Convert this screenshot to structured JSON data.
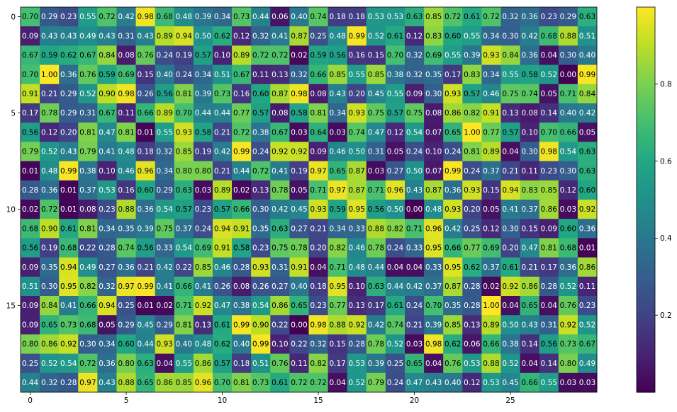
{
  "chart_data": {
    "type": "heatmap",
    "colormap": "viridis",
    "value_range": [
      0,
      1
    ],
    "xlim": [
      -0.5,
      29.5
    ],
    "ylim": [
      19.5,
      -0.5
    ],
    "x_ticks": [
      0,
      5,
      10,
      15,
      20,
      25
    ],
    "y_ticks": [
      0,
      5,
      10,
      15
    ],
    "colorbar_ticks": [
      0.2,
      0.4,
      0.6,
      0.8
    ],
    "grid": false,
    "show_cell_labels": true,
    "label_format": "2 decimals",
    "values": [
      [
        0.7,
        0.29,
        0.23,
        0.55,
        0.72,
        0.42,
        0.98,
        0.68,
        0.48,
        0.39,
        0.34,
        0.73,
        0.44,
        0.06,
        0.4,
        0.74,
        0.18,
        0.18,
        0.53,
        0.53,
        0.63,
        0.85,
        0.72,
        0.61,
        0.72,
        0.32,
        0.36,
        0.23,
        0.29,
        0.63
      ],
      [
        0.09,
        0.43,
        0.43,
        0.49,
        0.43,
        0.31,
        0.43,
        0.89,
        0.94,
        0.5,
        0.62,
        0.12,
        0.32,
        0.41,
        0.87,
        0.25,
        0.48,
        0.99,
        0.52,
        0.61,
        0.12,
        0.83,
        0.6,
        0.55,
        0.34,
        0.3,
        0.42,
        0.68,
        0.88,
        0.51
      ],
      [
        0.67,
        0.59,
        0.62,
        0.67,
        0.84,
        0.08,
        0.76,
        0.24,
        0.19,
        0.57,
        0.1,
        0.89,
        0.72,
        0.72,
        0.02,
        0.59,
        0.56,
        0.16,
        0.15,
        0.7,
        0.32,
        0.69,
        0.55,
        0.39,
        0.93,
        0.84,
        0.36,
        0.04,
        0.3,
        0.4
      ],
      [
        0.7,
        1.0,
        0.36,
        0.76,
        0.59,
        0.69,
        0.15,
        0.4,
        0.24,
        0.34,
        0.51,
        0.67,
        0.11,
        0.13,
        0.32,
        0.66,
        0.85,
        0.55,
        0.85,
        0.38,
        0.32,
        0.35,
        0.17,
        0.83,
        0.34,
        0.55,
        0.58,
        0.52,
        0.0,
        0.99
      ],
      [
        0.91,
        0.21,
        0.29,
        0.52,
        0.9,
        0.98,
        0.26,
        0.56,
        0.81,
        0.39,
        0.73,
        0.16,
        0.6,
        0.87,
        0.98,
        0.08,
        0.43,
        0.2,
        0.45,
        0.55,
        0.09,
        0.3,
        0.93,
        0.57,
        0.46,
        0.75,
        0.74,
        0.05,
        0.71,
        0.84
      ],
      [
        0.17,
        0.78,
        0.29,
        0.31,
        0.67,
        0.11,
        0.66,
        0.89,
        0.7,
        0.44,
        0.44,
        0.77,
        0.57,
        0.08,
        0.58,
        0.81,
        0.34,
        0.93,
        0.75,
        0.57,
        0.75,
        0.08,
        0.86,
        0.82,
        0.91,
        0.13,
        0.08,
        0.14,
        0.4,
        0.42
      ],
      [
        0.56,
        0.12,
        0.2,
        0.81,
        0.47,
        0.81,
        0.01,
        0.55,
        0.93,
        0.58,
        0.21,
        0.72,
        0.38,
        0.67,
        0.03,
        0.64,
        0.03,
        0.74,
        0.47,
        0.12,
        0.54,
        0.07,
        0.65,
        1.0,
        0.77,
        0.57,
        0.1,
        0.7,
        0.66,
        0.05
      ],
      [
        0.79,
        0.52,
        0.43,
        0.79,
        0.41,
        0.48,
        0.18,
        0.32,
        0.85,
        0.19,
        0.42,
        0.99,
        0.24,
        0.92,
        0.92,
        0.09,
        0.46,
        0.5,
        0.31,
        0.05,
        0.24,
        0.1,
        0.24,
        0.81,
        0.89,
        0.04,
        0.3,
        0.98,
        0.54,
        0.63
      ],
      [
        0.01,
        0.48,
        0.99,
        0.38,
        0.1,
        0.46,
        0.96,
        0.34,
        0.8,
        0.8,
        0.21,
        0.44,
        0.72,
        0.41,
        0.19,
        0.97,
        0.65,
        0.87,
        0.03,
        0.27,
        0.5,
        0.07,
        0.99,
        0.24,
        0.37,
        0.21,
        0.11,
        0.23,
        0.3,
        0.63
      ],
      [
        0.28,
        0.36,
        0.01,
        0.37,
        0.53,
        0.16,
        0.6,
        0.29,
        0.63,
        0.03,
        0.89,
        0.02,
        0.13,
        0.78,
        0.05,
        0.71,
        0.97,
        0.87,
        0.71,
        0.96,
        0.43,
        0.87,
        0.36,
        0.93,
        0.15,
        0.94,
        0.83,
        0.85,
        0.12,
        0.6
      ],
      [
        0.02,
        0.72,
        0.01,
        0.08,
        0.23,
        0.88,
        0.36,
        0.54,
        0.57,
        0.23,
        0.57,
        0.66,
        0.3,
        0.42,
        0.45,
        0.93,
        0.59,
        0.95,
        0.56,
        0.5,
        0.0,
        0.48,
        0.93,
        0.2,
        0.05,
        0.41,
        0.37,
        0.86,
        0.03,
        0.92
      ],
      [
        0.68,
        0.9,
        0.61,
        0.81,
        0.34,
        0.35,
        0.39,
        0.75,
        0.37,
        0.24,
        0.94,
        0.91,
        0.35,
        0.63,
        0.27,
        0.21,
        0.34,
        0.33,
        0.88,
        0.82,
        0.71,
        0.96,
        0.42,
        0.25,
        0.12,
        0.3,
        0.15,
        0.09,
        0.6,
        0.36
      ],
      [
        0.56,
        0.19,
        0.68,
        0.22,
        0.28,
        0.74,
        0.56,
        0.33,
        0.54,
        0.69,
        0.91,
        0.58,
        0.23,
        0.75,
        0.78,
        0.2,
        0.82,
        0.46,
        0.78,
        0.24,
        0.33,
        0.95,
        0.66,
        0.77,
        0.69,
        0.2,
        0.47,
        0.81,
        0.68,
        0.01
      ],
      [
        0.09,
        0.35,
        0.94,
        0.49,
        0.27,
        0.36,
        0.21,
        0.42,
        0.22,
        0.85,
        0.46,
        0.28,
        0.93,
        0.31,
        0.91,
        0.04,
        0.71,
        0.48,
        0.44,
        0.04,
        0.04,
        0.33,
        0.95,
        0.62,
        0.37,
        0.61,
        0.21,
        0.17,
        0.36,
        0.86
      ],
      [
        0.51,
        0.3,
        0.95,
        0.82,
        0.32,
        0.97,
        0.99,
        0.41,
        0.66,
        0.41,
        0.26,
        0.08,
        0.26,
        0.27,
        0.4,
        0.18,
        0.95,
        0.1,
        0.63,
        0.44,
        0.42,
        0.37,
        0.87,
        0.28,
        0.02,
        0.92,
        0.86,
        0.28,
        0.52,
        0.11
      ],
      [
        0.09,
        0.84,
        0.41,
        0.66,
        0.94,
        0.25,
        0.01,
        0.02,
        0.71,
        0.92,
        0.47,
        0.38,
        0.54,
        0.86,
        0.65,
        0.23,
        0.77,
        0.13,
        0.17,
        0.61,
        0.24,
        0.7,
        0.35,
        0.28,
        1.0,
        0.04,
        0.65,
        0.04,
        0.76,
        0.23
      ],
      [
        0.09,
        0.65,
        0.73,
        0.68,
        0.05,
        0.29,
        0.45,
        0.29,
        0.81,
        0.13,
        0.61,
        0.99,
        0.9,
        0.22,
        0.0,
        0.98,
        0.88,
        0.92,
        0.42,
        0.74,
        0.21,
        0.39,
        0.85,
        0.13,
        0.89,
        0.5,
        0.43,
        0.31,
        0.92,
        0.52
      ],
      [
        0.8,
        0.86,
        0.92,
        0.3,
        0.34,
        0.6,
        0.44,
        0.93,
        0.4,
        0.48,
        0.62,
        0.4,
        0.99,
        0.1,
        0.22,
        0.32,
        0.15,
        0.28,
        0.78,
        0.52,
        0.03,
        0.98,
        0.62,
        0.06,
        0.66,
        0.38,
        0.14,
        0.56,
        0.73,
        0.67
      ],
      [
        0.25,
        0.52,
        0.54,
        0.72,
        0.36,
        0.8,
        0.63,
        0.04,
        0.55,
        0.86,
        0.57,
        0.18,
        0.51,
        0.76,
        0.11,
        0.82,
        0.17,
        0.53,
        0.39,
        0.25,
        0.65,
        0.04,
        0.76,
        0.53,
        0.88,
        0.52,
        0.04,
        0.14,
        0.8,
        0.49
      ],
      [
        0.44,
        0.32,
        0.28,
        0.97,
        0.43,
        0.88,
        0.65,
        0.86,
        0.85,
        0.96,
        0.7,
        0.81,
        0.73,
        0.61,
        0.72,
        0.72,
        0.04,
        0.52,
        0.79,
        0.24,
        0.47,
        0.43,
        0.4,
        0.12,
        0.53,
        0.45,
        0.66,
        0.55,
        0.03,
        0.03
      ]
    ]
  }
}
